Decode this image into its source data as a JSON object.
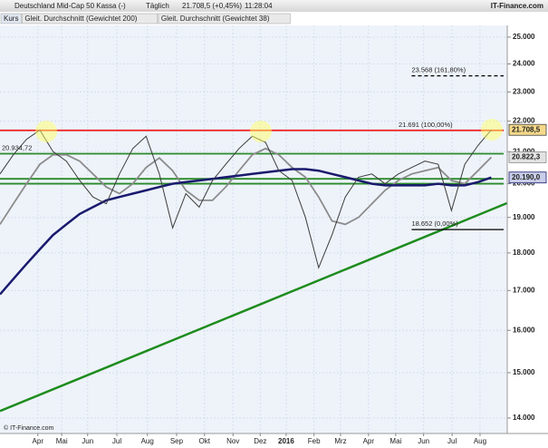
{
  "header": {
    "title": "Deutschland Mid-Cap 50 Kassa (-)",
    "interval": "Täglich",
    "quote": "21.708,5 (+0,45%)",
    "time": "11:28:04",
    "brand": "IT-Finance.com"
  },
  "footer": "© IT-Finance.com",
  "chart_data": {
    "type": "line",
    "log_scale": true,
    "grid": true,
    "x": [
      0,
      2,
      4,
      6,
      8,
      10,
      12,
      14,
      16,
      18,
      20,
      22,
      24,
      26,
      28,
      30,
      32,
      34,
      36,
      38,
      40,
      42,
      44,
      46,
      48,
      50,
      52,
      54,
      56,
      58,
      60,
      62,
      64,
      66,
      68,
      70,
      72,
      74
    ],
    "xlim": [
      0,
      76.4
    ],
    "xticks": [
      {
        "value": 5.7,
        "label": "Apr"
      },
      {
        "value": 9.3,
        "label": "Mai"
      },
      {
        "value": 13.2,
        "label": "Jun"
      },
      {
        "value": 17.6,
        "label": "Jul"
      },
      {
        "value": 22.2,
        "label": "Aug"
      },
      {
        "value": 26.6,
        "label": "Sep"
      },
      {
        "value": 30.8,
        "label": "Okt"
      },
      {
        "value": 35.1,
        "label": "Nov"
      },
      {
        "value": 39.2,
        "label": "Dez"
      },
      {
        "value": 43.1,
        "label": "2016"
      },
      {
        "value": 47.3,
        "label": "Feb"
      },
      {
        "value": 51.3,
        "label": "Mrz"
      },
      {
        "value": 55.5,
        "label": "Apr"
      },
      {
        "value": 59.6,
        "label": "Mai"
      },
      {
        "value": 63.8,
        "label": "Jun"
      },
      {
        "value": 68.1,
        "label": "Jul"
      },
      {
        "value": 72.3,
        "label": "Aug"
      }
    ],
    "ylim": [
      13675,
      25450
    ],
    "yticks": [
      {
        "value": 14000,
        "label": "14.000"
      },
      {
        "value": 15000,
        "label": "15.000"
      },
      {
        "value": 16000,
        "label": "16.000"
      },
      {
        "value": 17000,
        "label": "17.000"
      },
      {
        "value": 18000,
        "label": "18.000"
      },
      {
        "value": 19000,
        "label": "19.000"
      },
      {
        "value": 20000,
        "label": "20.000"
      },
      {
        "value": 21000,
        "label": "21.000"
      },
      {
        "value": 22000,
        "label": "22.000"
      },
      {
        "value": 23000,
        "label": "23.000"
      },
      {
        "value": 24000,
        "label": "24.000"
      },
      {
        "value": 25000,
        "label": "25.000"
      }
    ],
    "series": [
      {
        "name": "Kurs",
        "color": "#3c3c3c",
        "last_label": "21.708,5",
        "box_color": "#f5d98a",
        "values": [
          20300,
          20900,
          21400,
          21700,
          21000,
          20700,
          20100,
          19600,
          19400,
          20300,
          21100,
          21500,
          20300,
          18700,
          19700,
          19300,
          20100,
          20600,
          21100,
          21500,
          21300,
          20400,
          20100,
          19000,
          17600,
          18500,
          19600,
          20200,
          20300,
          20000,
          20300,
          20500,
          20700,
          20600,
          19200,
          20600,
          21200,
          21708.5
        ]
      },
      {
        "name": "Gleit. Durchschnitt (Gewichtet 200)",
        "color": "#1a1a6e",
        "last_label": "20.190,0",
        "box_color": "#c8cde8",
        "values": [
          16900,
          17300,
          17700,
          18100,
          18500,
          18800,
          19100,
          19300,
          19500,
          19600,
          19700,
          19800,
          19900,
          20000,
          20050,
          20100,
          20150,
          20200,
          20250,
          20300,
          20350,
          20400,
          20450,
          20450,
          20400,
          20300,
          20200,
          20100,
          20000,
          19950,
          19950,
          19950,
          19950,
          20000,
          19950,
          19950,
          20050,
          20190
        ]
      },
      {
        "name": "Gleit. Durchschnitt (Gewichtet 38)",
        "color": "#8c8c8c",
        "last_label": "20.822,3",
        "box_color": "#e2e2e2",
        "values": [
          18800,
          19400,
          20000,
          20600,
          20900,
          20900,
          20700,
          20300,
          19900,
          19700,
          20000,
          20500,
          20800,
          20400,
          19800,
          19500,
          19500,
          19900,
          20400,
          20900,
          21100,
          20900,
          20500,
          20200,
          19600,
          18900,
          18800,
          19000,
          19400,
          19800,
          20100,
          20300,
          20400,
          20500,
          20100,
          20000,
          20400,
          20822.3
        ]
      }
    ],
    "levels": [
      {
        "value": 21691,
        "label": "21.691 (100,00%)",
        "color": "#ee1c1c"
      },
      {
        "value": 20934.72,
        "label": "20.934,72",
        "color": "#2a8a2a"
      },
      {
        "value": 20150,
        "color": "#2a8a2a"
      },
      {
        "value": 20000,
        "color": "#2a8a2a"
      },
      {
        "value": 23568,
        "label": "23.568 (161,80%)",
        "color": "#000000",
        "dashed": true,
        "from": 62
      },
      {
        "value": 18652,
        "label": "18.652 (0,00%)",
        "color": "#000000",
        "from": 62
      }
    ],
    "trendline": {
      "x": [
        0,
        76.4
      ],
      "y": [
        14150,
        19420
      ],
      "color": "#1e8c1e"
    }
  }
}
